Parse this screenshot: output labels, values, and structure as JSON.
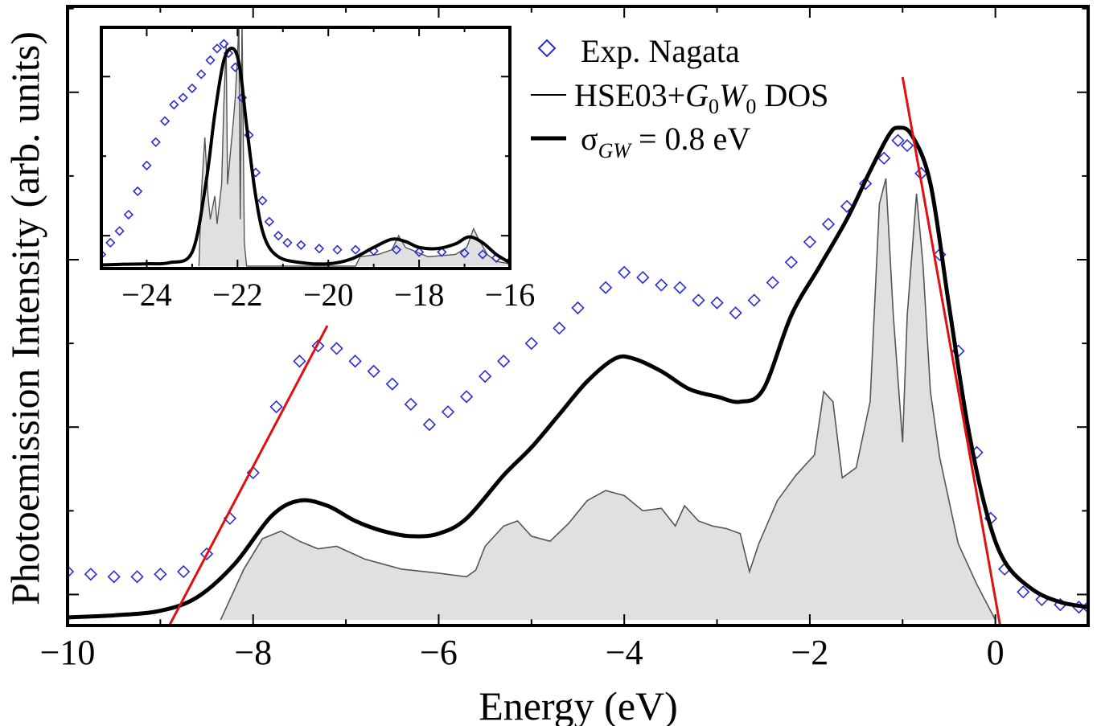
{
  "chart_data": [
    {
      "type": "line",
      "xlabel": "Energy (eV)",
      "ylabel": "Photoemission Intensity (arb. units)",
      "xlim": [
        -10,
        1
      ],
      "ylim": [
        0,
        1
      ],
      "x_ticks": [
        -10,
        -8,
        -6,
        -4,
        -2,
        0
      ],
      "x_tick_labels": [
        "−10",
        "−8",
        "−6",
        "−4",
        "−2",
        "0"
      ],
      "y_tick_labels_shown": false,
      "legend": {
        "position": "top-right",
        "entries": [
          {
            "marker": "open-diamond",
            "color": "#2b2bd6",
            "label": "Exp. Nagata"
          },
          {
            "marker": "thin-line",
            "color": "#000000",
            "label_parts": [
              "HSE03+",
              "G",
              "0",
              "W",
              "0",
              " DOS"
            ]
          },
          {
            "marker": "thick-line",
            "color": "#000000",
            "label_parts": [
              "σ",
              "GW",
              " = 0.8 eV"
            ]
          }
        ]
      },
      "series": [
        {
          "name": "Exp. Nagata",
          "kind": "scatter",
          "color": "#2b2bd6",
          "points": [
            [
              -10,
              0.095
            ],
            [
              -9.75,
              0.09
            ],
            [
              -9.5,
              0.085
            ],
            [
              -9.25,
              0.085
            ],
            [
              -9,
              0.09
            ],
            [
              -8.75,
              0.095
            ],
            [
              -8.5,
              0.13
            ],
            [
              -8.25,
              0.2
            ],
            [
              -8,
              0.29
            ],
            [
              -7.75,
              0.42
            ],
            [
              -7.5,
              0.51
            ],
            [
              -7.3,
              0.54
            ],
            [
              -7.1,
              0.535
            ],
            [
              -6.9,
              0.51
            ],
            [
              -6.7,
              0.49
            ],
            [
              -6.5,
              0.465
            ],
            [
              -6.3,
              0.425
            ],
            [
              -6.1,
              0.385
            ],
            [
              -5.9,
              0.41
            ],
            [
              -5.7,
              0.44
            ],
            [
              -5.5,
              0.48
            ],
            [
              -5.3,
              0.51
            ],
            [
              -5,
              0.545
            ],
            [
              -4.7,
              0.575
            ],
            [
              -4.5,
              0.615
            ],
            [
              -4.2,
              0.655
            ],
            [
              -4,
              0.685
            ],
            [
              -3.8,
              0.675
            ],
            [
              -3.6,
              0.66
            ],
            [
              -3.4,
              0.655
            ],
            [
              -3.2,
              0.63
            ],
            [
              -3,
              0.625
            ],
            [
              -2.8,
              0.605
            ],
            [
              -2.6,
              0.63
            ],
            [
              -2.4,
              0.665
            ],
            [
              -2.2,
              0.705
            ],
            [
              -2,
              0.745
            ],
            [
              -1.8,
              0.78
            ],
            [
              -1.6,
              0.815
            ],
            [
              -1.4,
              0.86
            ],
            [
              -1.2,
              0.91
            ],
            [
              -1.05,
              0.945
            ],
            [
              -0.95,
              0.935
            ],
            [
              -0.8,
              0.88
            ],
            [
              -0.6,
              0.72
            ],
            [
              -0.4,
              0.53
            ],
            [
              -0.2,
              0.33
            ],
            [
              -0.05,
              0.2
            ],
            [
              0.1,
              0.1
            ],
            [
              0.3,
              0.055
            ],
            [
              0.5,
              0.04
            ],
            [
              0.7,
              0.03
            ],
            [
              0.9,
              0.025
            ],
            [
              1,
              0.025
            ]
          ]
        },
        {
          "name": "HSE03+G0W0 DOS",
          "kind": "filled-line",
          "color": "#555555",
          "fill": "#e0e0e0",
          "points": [
            [
              -8.35,
              0
            ],
            [
              -8.1,
              0.1
            ],
            [
              -7.9,
              0.16
            ],
            [
              -7.7,
              0.175
            ],
            [
              -7.5,
              0.155
            ],
            [
              -7.3,
              0.14
            ],
            [
              -7.1,
              0.145
            ],
            [
              -6.8,
              0.12
            ],
            [
              -6.4,
              0.1
            ],
            [
              -6,
              0.092
            ],
            [
              -5.7,
              0.085
            ],
            [
              -5.6,
              0.098
            ],
            [
              -5.5,
              0.145
            ],
            [
              -5.3,
              0.185
            ],
            [
              -5.15,
              0.195
            ],
            [
              -5,
              0.165
            ],
            [
              -4.8,
              0.155
            ],
            [
              -4.6,
              0.19
            ],
            [
              -4.4,
              0.235
            ],
            [
              -4.2,
              0.255
            ],
            [
              -4,
              0.245
            ],
            [
              -3.8,
              0.215
            ],
            [
              -3.6,
              0.22
            ],
            [
              -3.45,
              0.185
            ],
            [
              -3.35,
              0.225
            ],
            [
              -3.2,
              0.195
            ],
            [
              -3.05,
              0.185
            ],
            [
              -2.9,
              0.18
            ],
            [
              -2.75,
              0.17
            ],
            [
              -2.65,
              0.095
            ],
            [
              -2.55,
              0.15
            ],
            [
              -2.35,
              0.235
            ],
            [
              -2.15,
              0.285
            ],
            [
              -1.95,
              0.325
            ],
            [
              -1.85,
              0.45
            ],
            [
              -1.75,
              0.43
            ],
            [
              -1.65,
              0.28
            ],
            [
              -1.5,
              0.3
            ],
            [
              -1.35,
              0.43
            ],
            [
              -1.25,
              0.82
            ],
            [
              -1.18,
              0.87
            ],
            [
              -1.1,
              0.6
            ],
            [
              -1,
              0.35
            ],
            [
              -0.95,
              0.6
            ],
            [
              -0.85,
              0.84
            ],
            [
              -0.78,
              0.7
            ],
            [
              -0.7,
              0.45
            ],
            [
              -0.6,
              0.32
            ],
            [
              -0.4,
              0.15
            ],
            [
              -0.2,
              0.07
            ],
            [
              0,
              0
            ]
          ]
        },
        {
          "name": "σGW = 0.8 eV",
          "kind": "line",
          "color": "#000000",
          "points": [
            [
              -10,
              0.005
            ],
            [
              -9.5,
              0.009
            ],
            [
              -9,
              0.018
            ],
            [
              -8.6,
              0.045
            ],
            [
              -8.2,
              0.11
            ],
            [
              -7.8,
              0.205
            ],
            [
              -7.5,
              0.235
            ],
            [
              -7.2,
              0.225
            ],
            [
              -6.9,
              0.195
            ],
            [
              -6.6,
              0.175
            ],
            [
              -6.3,
              0.165
            ],
            [
              -6,
              0.17
            ],
            [
              -5.7,
              0.2
            ],
            [
              -5.3,
              0.285
            ],
            [
              -5,
              0.34
            ],
            [
              -4.7,
              0.405
            ],
            [
              -4.4,
              0.47
            ],
            [
              -4.1,
              0.515
            ],
            [
              -3.9,
              0.515
            ],
            [
              -3.6,
              0.49
            ],
            [
              -3.3,
              0.455
            ],
            [
              -3,
              0.44
            ],
            [
              -2.75,
              0.43
            ],
            [
              -2.5,
              0.455
            ],
            [
              -2.2,
              0.6
            ],
            [
              -1.9,
              0.695
            ],
            [
              -1.6,
              0.79
            ],
            [
              -1.35,
              0.885
            ],
            [
              -1.15,
              0.955
            ],
            [
              -1.05,
              0.97
            ],
            [
              -0.9,
              0.955
            ],
            [
              -0.7,
              0.86
            ],
            [
              -0.5,
              0.62
            ],
            [
              -0.3,
              0.385
            ],
            [
              -0.1,
              0.215
            ],
            [
              0.1,
              0.115
            ],
            [
              0.4,
              0.06
            ],
            [
              0.7,
              0.035
            ],
            [
              1,
              0.025
            ]
          ]
        },
        {
          "name": "red fit right",
          "kind": "straight-line",
          "color": "#e01010",
          "points": [
            [
              -1,
              1.07
            ],
            [
              0.05,
              -0.01
            ]
          ]
        },
        {
          "name": "red fit left",
          "kind": "straight-line",
          "color": "#e01010",
          "points": [
            [
              -8.9,
              -0.01
            ],
            [
              -7.2,
              0.58
            ]
          ]
        }
      ]
    },
    {
      "type": "line",
      "role": "inset",
      "xlim": [
        -25,
        -16
      ],
      "ylim": [
        0,
        1
      ],
      "x_ticks": [
        -24,
        -22,
        -20,
        -18,
        -16
      ],
      "x_tick_labels": [
        "−24",
        "−22",
        "−20",
        "−18",
        "−16"
      ],
      "series": [
        {
          "name": "Exp. Nagata",
          "kind": "scatter",
          "color": "#2b2bd6",
          "points": [
            [
              -25,
              0.05
            ],
            [
              -24.8,
              0.1
            ],
            [
              -24.6,
              0.15
            ],
            [
              -24.4,
              0.22
            ],
            [
              -24.2,
              0.32
            ],
            [
              -24,
              0.43
            ],
            [
              -23.8,
              0.53
            ],
            [
              -23.6,
              0.62
            ],
            [
              -23.4,
              0.69
            ],
            [
              -23.2,
              0.72
            ],
            [
              -23,
              0.76
            ],
            [
              -22.8,
              0.82
            ],
            [
              -22.6,
              0.88
            ],
            [
              -22.45,
              0.93
            ],
            [
              -22.3,
              0.95
            ],
            [
              -22.2,
              0.91
            ],
            [
              -22.05,
              0.85
            ],
            [
              -21.9,
              0.72
            ],
            [
              -21.75,
              0.56
            ],
            [
              -21.6,
              0.4
            ],
            [
              -21.45,
              0.28
            ],
            [
              -21.3,
              0.19
            ],
            [
              -21.1,
              0.13
            ],
            [
              -20.9,
              0.1
            ],
            [
              -20.6,
              0.09
            ],
            [
              -20.2,
              0.075
            ],
            [
              -19.8,
              0.07
            ],
            [
              -19.4,
              0.07
            ],
            [
              -19,
              0.065
            ],
            [
              -18.5,
              0.07
            ],
            [
              -18,
              0.06
            ],
            [
              -17.5,
              0.06
            ],
            [
              -17,
              0.055
            ],
            [
              -16.6,
              0.05
            ],
            [
              -16.3,
              0.035
            ],
            [
              -16,
              0.02
            ]
          ]
        },
        {
          "name": "DOS",
          "kind": "filled-line",
          "color": "#555555",
          "fill": "#e0e0e0",
          "points": [
            [
              -22.85,
              0
            ],
            [
              -22.8,
              0.3
            ],
            [
              -22.72,
              0.55
            ],
            [
              -22.65,
              0.3
            ],
            [
              -22.6,
              0.2
            ],
            [
              -22.5,
              0.3
            ],
            [
              -22.45,
              0.18
            ],
            [
              -22.35,
              0.35
            ],
            [
              -22.3,
              0.7
            ],
            [
              -22.25,
              0.95
            ],
            [
              -22.22,
              0.35
            ],
            [
              -22.15,
              0.5
            ],
            [
              -22.1,
              0.6
            ],
            [
              -22.05,
              0.72
            ],
            [
              -22,
              0.9
            ],
            [
              -21.97,
              1.05
            ],
            [
              -21.94,
              0.2
            ],
            [
              -21.9,
              1.05
            ],
            [
              -21.85,
              0.1
            ],
            [
              -21.8,
              0
            ],
            [
              -21.5,
              0
            ],
            [
              -19.4,
              0
            ],
            [
              -19.3,
              0.04
            ],
            [
              -18.9,
              0.05
            ],
            [
              -18.6,
              0.07
            ],
            [
              -18.45,
              0.13
            ],
            [
              -18.3,
              0.08
            ],
            [
              -17.8,
              0.04
            ],
            [
              -17.2,
              0.05
            ],
            [
              -16.95,
              0.08
            ],
            [
              -16.8,
              0.16
            ],
            [
              -16.7,
              0.12
            ],
            [
              -16.5,
              0.05
            ],
            [
              -16.3,
              0.02
            ],
            [
              -16,
              0.01
            ]
          ]
        },
        {
          "name": "broadened",
          "kind": "line",
          "color": "#000000",
          "points": [
            [
              -25,
              0.005
            ],
            [
              -24.5,
              0.008
            ],
            [
              -24,
              0.01
            ],
            [
              -23.5,
              0.015
            ],
            [
              -23,
              0.06
            ],
            [
              -22.7,
              0.35
            ],
            [
              -22.5,
              0.65
            ],
            [
              -22.3,
              0.88
            ],
            [
              -22.1,
              0.93
            ],
            [
              -21.95,
              0.85
            ],
            [
              -21.8,
              0.6
            ],
            [
              -21.6,
              0.3
            ],
            [
              -21.4,
              0.12
            ],
            [
              -21.1,
              0.04
            ],
            [
              -20.6,
              0.015
            ],
            [
              -20,
              0.01
            ],
            [
              -19.5,
              0.03
            ],
            [
              -19,
              0.08
            ],
            [
              -18.6,
              0.115
            ],
            [
              -18.3,
              0.105
            ],
            [
              -18,
              0.08
            ],
            [
              -17.6,
              0.075
            ],
            [
              -17.2,
              0.095
            ],
            [
              -16.9,
              0.125
            ],
            [
              -16.6,
              0.1
            ],
            [
              -16.3,
              0.05
            ],
            [
              -16,
              0.015
            ]
          ]
        }
      ]
    }
  ]
}
